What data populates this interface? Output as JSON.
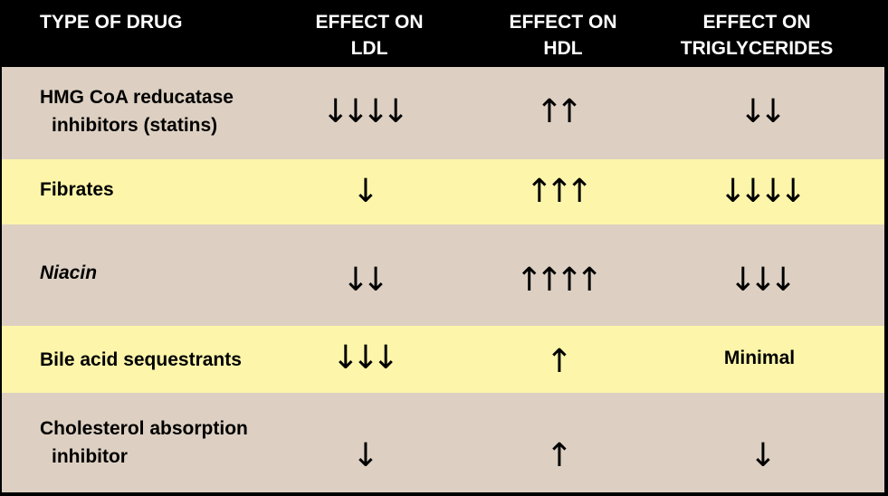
{
  "colors": {
    "header_bg": "#000000",
    "row_tan": "#ddd0c2",
    "row_yellow": "#fdf6aa"
  },
  "header": {
    "drug": "TYPE OF DRUG",
    "ldl_line1": "EFFECT ON",
    "ldl_line2": "LDL",
    "hdl_line1": "EFFECT ON",
    "hdl_line2": "HDL",
    "tg_line1": "EFFECT ON",
    "tg_line2": "TRIGLYCERIDES"
  },
  "rows": [
    {
      "drug_line1": "HMG CoA reducatase",
      "drug_line2": "inhibitors (statins)",
      "italic": false,
      "ldl": "↓↓↓↓",
      "hdl": "↑↑",
      "tg": "↓↓"
    },
    {
      "drug_line1": "Fibrates",
      "drug_line2": "",
      "italic": false,
      "ldl": "↓",
      "hdl": "↑↑↑",
      "tg": "↓↓↓↓"
    },
    {
      "drug_line1": "Niacin",
      "drug_line2": "",
      "italic": true,
      "ldl": "↓↓",
      "hdl": "↑↑↑↑",
      "tg": "↓↓↓"
    },
    {
      "drug_line1": "Bile acid sequestrants",
      "drug_line2": "",
      "italic": false,
      "ldl": "↓↓↓",
      "hdl": "↑",
      "tg": "Minimal"
    },
    {
      "drug_line1": "Cholesterol absorption",
      "drug_line2": "inhibitor",
      "italic": false,
      "ldl": "↓",
      "hdl": "↑",
      "tg": "↓"
    }
  ]
}
